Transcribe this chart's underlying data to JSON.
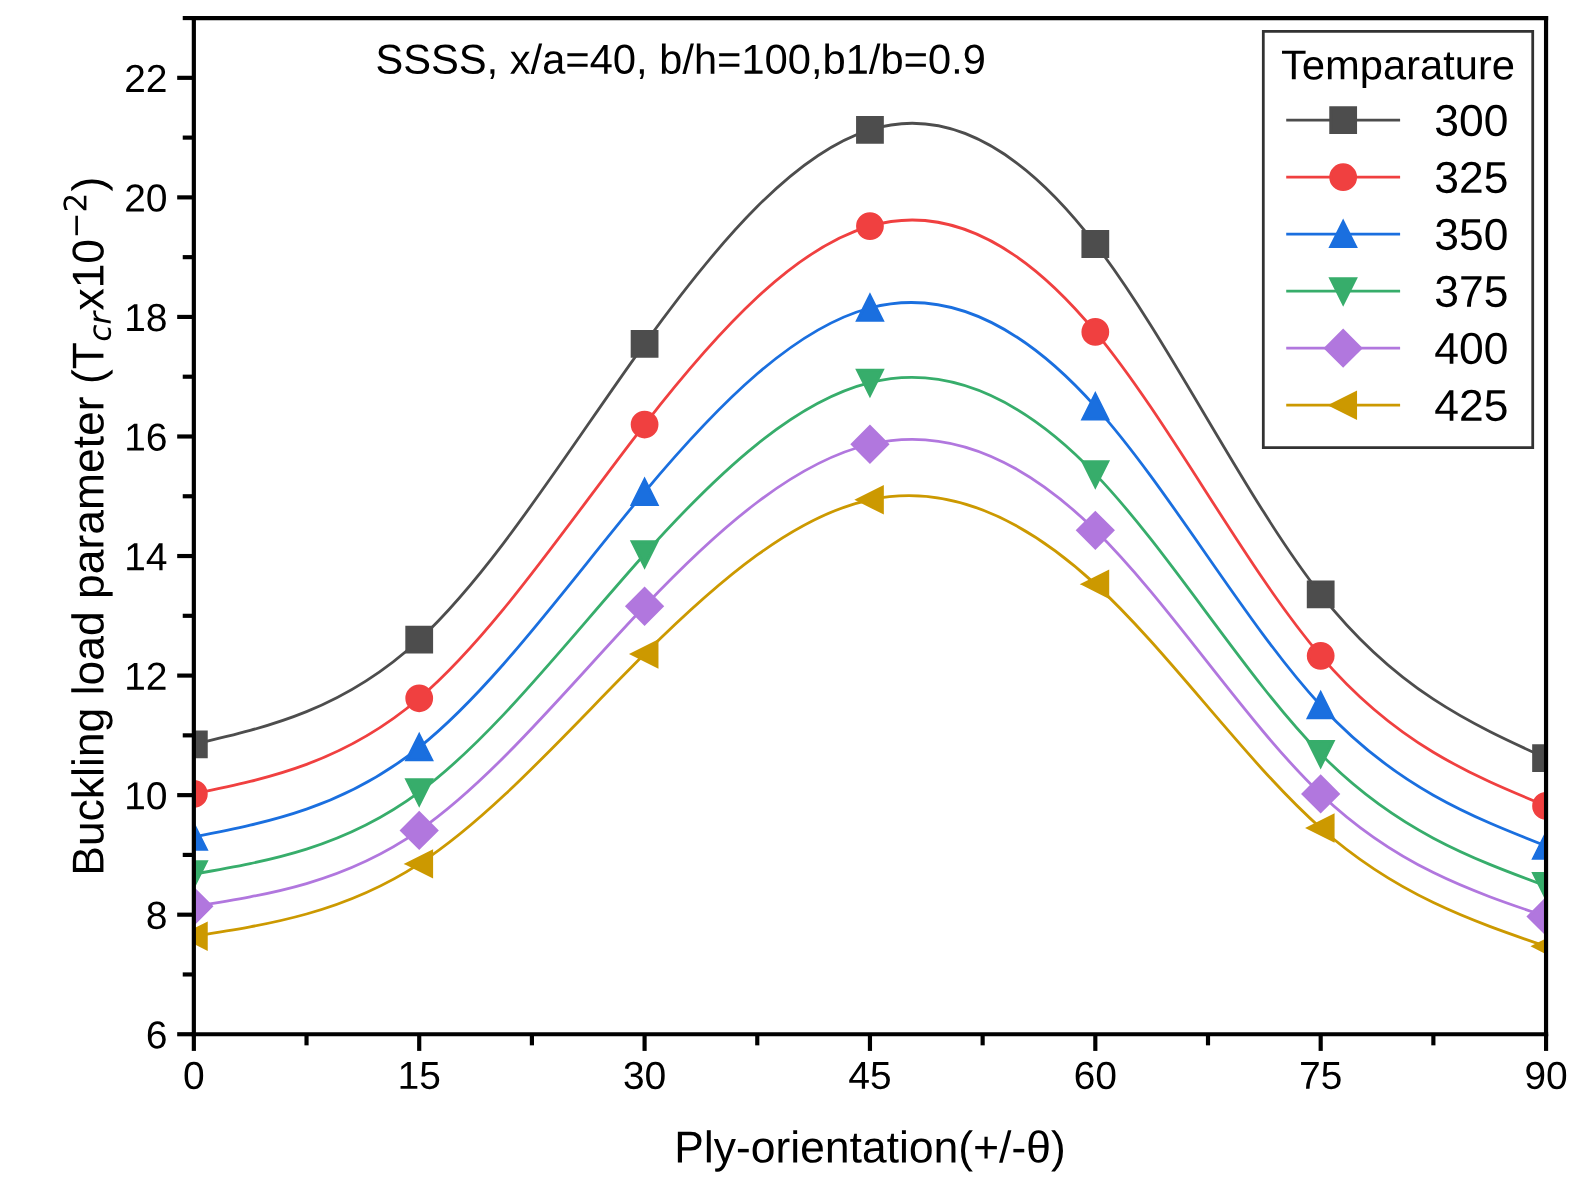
{
  "chart_data": {
    "type": "line",
    "title": "SSSS, x/a=40, b/h=100,b1/b=0.9",
    "xlabel": "Ply-orientation(+/-θ)",
    "ylabel": "Buckling load parameter (T$_{cr}$x10$^{−2}$)",
    "legend_title": "Temparature",
    "x": [
      0,
      15,
      30,
      45,
      60,
      75,
      90
    ],
    "series": [
      {
        "name": "300",
        "color": "#4d4d4d",
        "marker": "square",
        "values": [
          10.85,
          12.6,
          17.55,
          21.13,
          19.22,
          13.36,
          10.62
        ]
      },
      {
        "name": "325",
        "color": "#f04040",
        "marker": "circle",
        "values": [
          10.02,
          11.62,
          16.2,
          19.52,
          17.75,
          12.33,
          9.82
        ]
      },
      {
        "name": "350",
        "color": "#1a6fdf",
        "marker": "triangle",
        "values": [
          9.3,
          10.8,
          15.07,
          18.15,
          16.5,
          11.5,
          9.15
        ]
      },
      {
        "name": "375",
        "color": "#37ad6b",
        "marker": "triangle_down",
        "values": [
          8.68,
          10.05,
          14.03,
          16.9,
          15.37,
          10.69,
          8.48
        ]
      },
      {
        "name": "400",
        "color": "#b177de",
        "marker": "diamond",
        "values": [
          8.14,
          9.41,
          13.16,
          15.87,
          14.43,
          10.02,
          7.97
        ]
      },
      {
        "name": "425",
        "color": "#cc9900",
        "marker": "triangle_left",
        "values": [
          7.64,
          8.85,
          12.36,
          14.94,
          13.53,
          9.45,
          7.47
        ]
      }
    ],
    "xlim": [
      0,
      90
    ],
    "xticks": [
      0,
      15,
      30,
      45,
      60,
      75,
      90
    ],
    "ylim": [
      6,
      23
    ],
    "yticks": [
      6,
      8,
      10,
      12,
      14,
      16,
      18,
      20,
      22
    ],
    "grid": false,
    "legend": "top right",
    "line_style": "solid"
  }
}
